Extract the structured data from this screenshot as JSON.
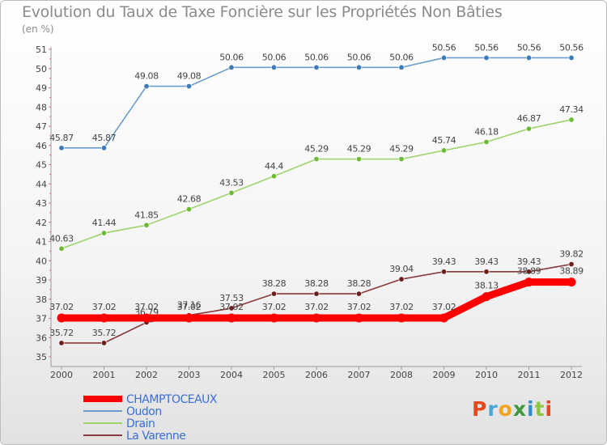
{
  "title": "Evolution du Taux de Taxe Foncière sur les Propriétés Non Bâties",
  "unit_label": "(en %)",
  "logo": {
    "letters": [
      "P",
      "r",
      "o",
      "x",
      "i",
      "t",
      "i"
    ],
    "colors": [
      "#e8461d",
      "#47a6d6",
      "#f2a31c",
      "#3e9a3a",
      "#2f8fd1",
      "#8dc63f",
      "#e8461d"
    ]
  },
  "chart_data": {
    "type": "line",
    "title": "Evolution du Taux de Taxe Foncière sur les Propriétés Non Bâties",
    "ylabel": "(en %)",
    "ylim": [
      35,
      51
    ],
    "yticks": [
      35,
      36,
      37,
      38,
      39,
      40,
      41,
      42,
      43,
      44,
      45,
      46,
      47,
      48,
      49,
      50,
      51
    ],
    "grid": false,
    "legend_position": "bottom-left",
    "categories": [
      "2000",
      "2001",
      "2002",
      "2003",
      "2004",
      "2005",
      "2006",
      "2007",
      "2008",
      "2009",
      "2010",
      "2011",
      "2012"
    ],
    "series": [
      {
        "name": "Oudon",
        "color": "#6b9ccc",
        "marker": "#3d7bb8",
        "values": [
          45.87,
          45.87,
          49.08,
          49.08,
          50.06,
          50.06,
          50.06,
          50.06,
          50.06,
          50.56,
          50.56,
          50.56,
          50.56
        ],
        "labels": [
          "45.87",
          "45.87",
          "49.08",
          "49.08",
          "50.06",
          "50.06",
          "50.06",
          "50.06",
          "50.06",
          "50.56",
          "50.56",
          "50.56",
          "50.56"
        ]
      },
      {
        "name": "Drain",
        "color": "#9fd36b",
        "marker": "#6dbb35",
        "values": [
          40.63,
          41.44,
          41.85,
          42.68,
          43.53,
          44.4,
          45.29,
          45.29,
          45.29,
          45.74,
          46.18,
          46.87,
          47.34
        ],
        "labels": [
          "40.63",
          "41.44",
          "41.85",
          "42.68",
          "43.53",
          "44.4",
          "45.29",
          "45.29",
          "45.29",
          "45.74",
          "46.18",
          "46.87",
          "47.34"
        ]
      },
      {
        "name": "La Varenne",
        "color": "#8a3a3a",
        "marker": "#6b1e1e",
        "values": [
          35.72,
          35.72,
          36.79,
          37.16,
          37.53,
          38.28,
          38.28,
          38.28,
          39.04,
          39.43,
          39.43,
          39.43,
          39.82
        ],
        "labels": [
          "35.72",
          "35.72",
          "36.79",
          "37.16",
          "37.53",
          "38.28",
          "38.28",
          "38.28",
          "39.04",
          "39.43",
          "39.43",
          "39.43",
          "39.82"
        ]
      },
      {
        "name": "CHAMPTOCEAUX",
        "color": "#ff0000",
        "marker": "#ff0000",
        "values": [
          37.02,
          37.02,
          37.02,
          37.02,
          37.02,
          37.02,
          37.02,
          37.02,
          37.02,
          37.02,
          38.13,
          38.89,
          38.89
        ],
        "labels": [
          "37.02",
          "37.02",
          "37.02",
          "37.02",
          "37.02",
          "37.02",
          "37.02",
          "37.02",
          "37.02",
          "37.02",
          "38.13",
          "38.89",
          "38.89"
        ]
      }
    ],
    "legend": [
      "CHAMPTOCEAUX",
      "Oudon",
      "Drain",
      "La Varenne"
    ]
  }
}
